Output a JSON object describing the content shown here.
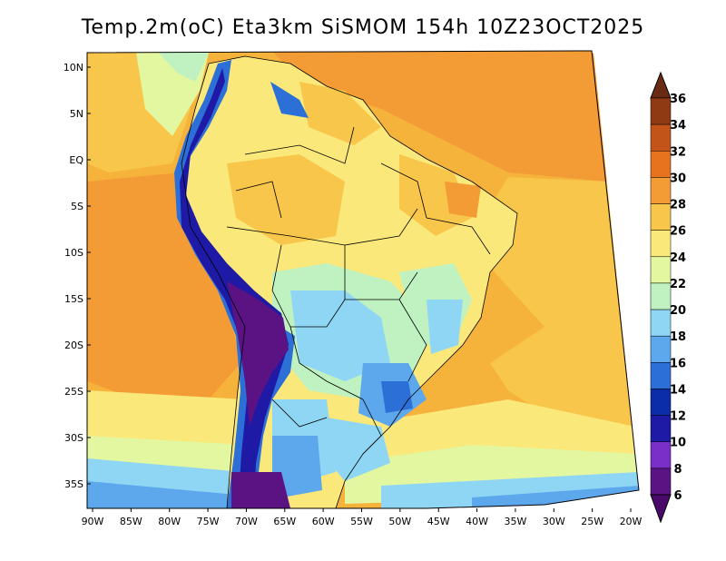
{
  "title": "Temp.2m(oC) Eta3km SiSMOM 154h 10Z23OCT2025",
  "map": {
    "region": "South America",
    "lon_range": [
      -90,
      -20
    ],
    "lat_range": [
      -37,
      12
    ],
    "lat_labels": [
      "10N",
      "5N",
      "EQ",
      "5S",
      "10S",
      "15S",
      "20S",
      "25S",
      "30S",
      "35S"
    ],
    "lat_values": [
      10,
      5,
      0,
      -5,
      -10,
      -15,
      -20,
      -25,
      -30,
      -35
    ],
    "lon_labels": [
      "90W",
      "85W",
      "80W",
      "75W",
      "70W",
      "65W",
      "60W",
      "55W",
      "50W",
      "45W",
      "40W",
      "35W",
      "30W",
      "25W",
      "20W"
    ],
    "lon_values": [
      -90,
      -85,
      -80,
      -75,
      -70,
      -65,
      -60,
      -55,
      -50,
      -45,
      -40,
      -35,
      -30,
      -25,
      -20
    ]
  },
  "colorbar": {
    "levels": [
      "36",
      "34",
      "32",
      "30",
      "28",
      "26",
      "24",
      "22",
      "20",
      "18",
      "16",
      "14",
      "12",
      "10",
      "8",
      "6"
    ],
    "colors": [
      "#6b2a14",
      "#8f3a12",
      "#c2541a",
      "#e8731f",
      "#f39b35",
      "#f8c64a",
      "#fbe87a",
      "#e3f7a0",
      "#bff2c0",
      "#8fd6f4",
      "#5da7ec",
      "#2c6fd6",
      "#0b2ea8",
      "#1f1aa6",
      "#7a2fc9",
      "#5b1282"
    ],
    "top_color": "#6b2a14",
    "bottom_color": "#4a0a6b"
  }
}
